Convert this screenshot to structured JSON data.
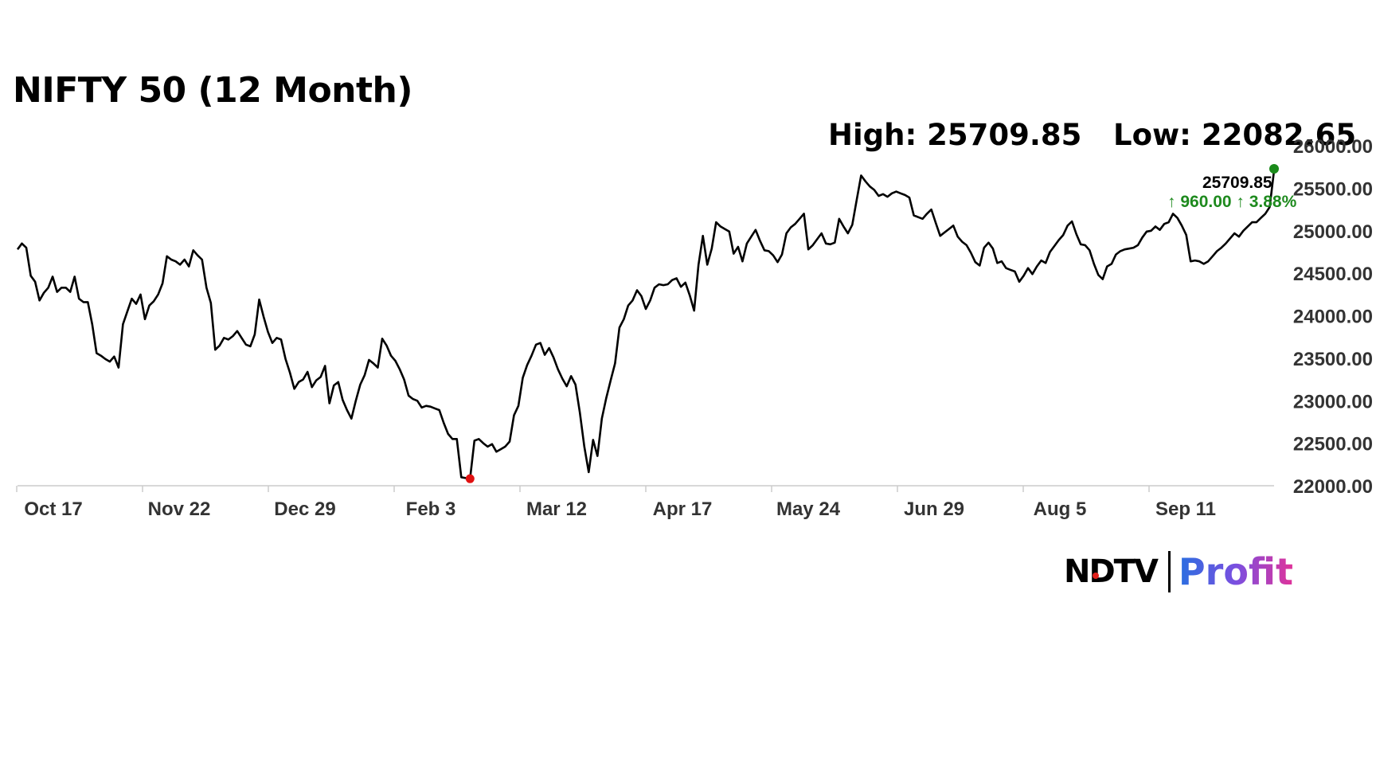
{
  "title": "NIFTY 50 (12 Month)",
  "high_label": "High: 25709.85",
  "low_label": "Low: 22082.65",
  "last_value": "25709.85",
  "change_text": "↑ 960.00 ↑ 3.88%",
  "logo": {
    "brand": "NDTV",
    "product": "Profit"
  },
  "colors": {
    "line": "#000000",
    "high_marker": "#1a8a1a",
    "low_marker": "#e01010",
    "change": "#1e8a1e"
  },
  "chart_data": {
    "type": "line",
    "title": "NIFTY 50 (12 Month)",
    "xlabel": "",
    "ylabel": "",
    "ylim": [
      22000,
      26000
    ],
    "grid": false,
    "y_ticks": [
      "26000.00",
      "25500.00",
      "25000.00",
      "24500.00",
      "24000.00",
      "23500.00",
      "23000.00",
      "22500.00",
      "22000.00"
    ],
    "x_ticks": [
      "Oct 17",
      "Nov 22",
      "Dec 29",
      "Feb 3",
      "Mar 12",
      "Apr 17",
      "May 24",
      "Jun 29",
      "Aug 5",
      "Sep 11"
    ],
    "high": 25709.85,
    "low": 22082.65,
    "last": 25709.85,
    "change": 960.0,
    "change_pct": 3.88,
    "series": [
      {
        "values": [
          24780,
          24850,
          24800,
          24470,
          24400,
          24180,
          24270,
          24330,
          24460,
          24280,
          24330,
          24330,
          24280,
          24460,
          24200,
          24160,
          24160,
          23900,
          23560,
          23530,
          23490,
          23460,
          23520,
          23390,
          23900,
          24050,
          24200,
          24140,
          24250,
          23960,
          24120,
          24170,
          24250,
          24380,
          24700,
          24660,
          24640,
          24600,
          24660,
          24580,
          24770,
          24710,
          24660,
          24330,
          24150,
          23600,
          23650,
          23740,
          23720,
          23760,
          23820,
          23740,
          23660,
          23640,
          23780,
          24190,
          23990,
          23810,
          23680,
          23740,
          23720,
          23490,
          23330,
          23140,
          23220,
          23250,
          23340,
          23160,
          23240,
          23280,
          23410,
          22970,
          23180,
          23220,
          23010,
          22890,
          22790,
          23000,
          23190,
          23300,
          23480,
          23440,
          23390,
          23730,
          23650,
          23530,
          23470,
          23370,
          23250,
          23060,
          23020,
          23000,
          22920,
          22940,
          22930,
          22910,
          22890,
          22740,
          22610,
          22550,
          22550,
          22100,
          22090,
          22082.65,
          22530,
          22550,
          22500,
          22460,
          22490,
          22400,
          22430,
          22460,
          22520,
          22830,
          22940,
          23270,
          23420,
          23530,
          23660,
          23680,
          23540,
          23620,
          23510,
          23370,
          23260,
          23170,
          23290,
          23190,
          22860,
          22460,
          22160,
          22540,
          22350,
          22790,
          23030,
          23240,
          23440,
          23860,
          23960,
          24120,
          24180,
          24300,
          24230,
          24080,
          24180,
          24330,
          24370,
          24360,
          24370,
          24420,
          24440,
          24340,
          24390,
          24240,
          24060,
          24600,
          24940,
          24600,
          24790,
          25100,
          25050,
          25020,
          24990,
          24730,
          24810,
          24640,
          24850,
          24930,
          25010,
          24880,
          24770,
          24760,
          24710,
          24630,
          24720,
          24970,
          25040,
          25080,
          25140,
          25200,
          24780,
          24830,
          24900,
          24970,
          24850,
          24840,
          24860,
          25140,
          25050,
          24970,
          25070,
          25360,
          25650,
          25580,
          25520,
          25480,
          25410,
          25430,
          25400,
          25440,
          25460,
          25440,
          25420,
          25390,
          25180,
          25160,
          25140,
          25200,
          25250,
          25090,
          24940,
          24980,
          25020,
          25060,
          24930,
          24870,
          24830,
          24740,
          24630,
          24590,
          24800,
          24860,
          24790,
          24620,
          24640,
          24560,
          24540,
          24520,
          24400,
          24470,
          24560,
          24490,
          24580,
          24650,
          24620,
          24750,
          24820,
          24890,
          24950,
          25060,
          25110,
          24960,
          24840,
          24830,
          24770,
          24610,
          24480,
          24430,
          24580,
          24610,
          24720,
          24760,
          24780,
          24790,
          24800,
          24830,
          24920,
          24990,
          25000,
          25050,
          25010,
          25080,
          25100,
          25200,
          25150,
          25060,
          24950,
          24640,
          24650,
          24640,
          24610,
          24640,
          24700,
          24760,
          24800,
          24850,
          24910,
          24970,
          24930,
          25000,
          25050,
          25100,
          25100,
          25150,
          25200,
          25280,
          25709.85
        ]
      }
    ]
  }
}
